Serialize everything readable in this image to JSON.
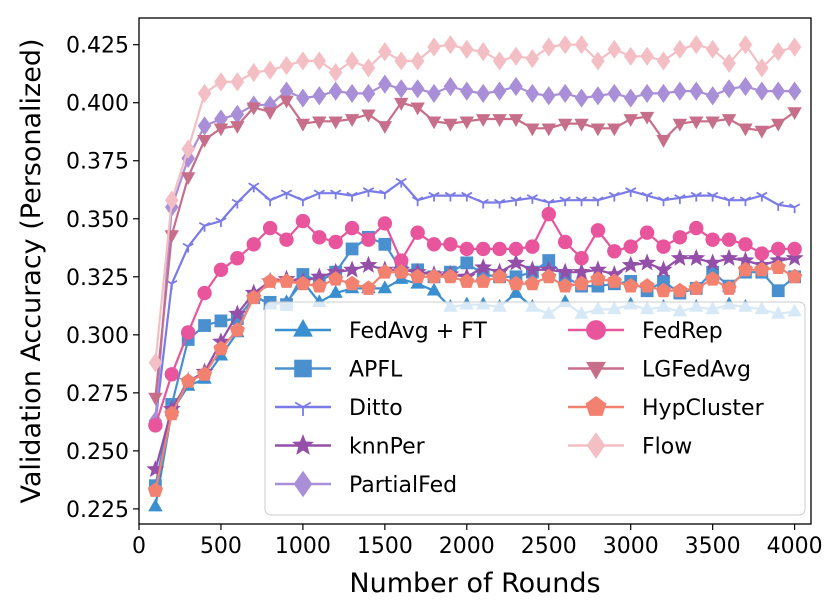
{
  "chart_data": {
    "type": "line",
    "title": "",
    "xlabel": "Number of Rounds",
    "ylabel": "Validation Accuracy (Personalized)",
    "xlim": [
      0,
      4100
    ],
    "ylim": [
      0.2185,
      0.4365
    ],
    "xticks": [
      0,
      500,
      1000,
      1500,
      2000,
      2500,
      3000,
      3500,
      4000
    ],
    "xtick_labels": [
      "0",
      "500",
      "1000",
      "1500",
      "2000",
      "2500",
      "3000",
      "3500",
      "4000"
    ],
    "yticks": [
      0.225,
      0.25,
      0.275,
      0.3,
      0.325,
      0.35,
      0.375,
      0.4,
      0.425
    ],
    "ytick_labels": [
      "0.225",
      "0.250",
      "0.275",
      "0.300",
      "0.325",
      "0.350",
      "0.375",
      "0.400",
      "0.425"
    ],
    "grid": false,
    "legend_position": "lower-right",
    "x": [
      100,
      200,
      300,
      400,
      500,
      600,
      700,
      800,
      900,
      1000,
      1100,
      1200,
      1300,
      1400,
      1500,
      1600,
      1700,
      1800,
      1900,
      2000,
      2100,
      2200,
      2300,
      2400,
      2500,
      2600,
      2700,
      2800,
      2900,
      3000,
      3100,
      3200,
      3300,
      3400,
      3500,
      3600,
      3700,
      3800,
      3900,
      4000
    ],
    "series": [
      {
        "name": "FedAvg + FT",
        "color": "#3a8fd1",
        "marker": "triangle-up",
        "values": [
          0.226,
          0.267,
          0.278,
          0.281,
          0.291,
          0.301,
          0.317,
          0.313,
          0.314,
          0.323,
          0.314,
          0.318,
          0.32,
          0.32,
          0.32,
          0.324,
          0.322,
          0.319,
          0.312,
          0.313,
          0.313,
          0.312,
          0.318,
          0.312,
          0.309,
          0.314,
          0.309,
          0.311,
          0.311,
          0.313,
          0.311,
          0.312,
          0.31,
          0.312,
          0.311,
          0.313,
          0.312,
          0.311,
          0.309,
          0.31
        ]
      },
      {
        "name": "APFL",
        "color": "#4a90cf",
        "marker": "square",
        "values": [
          0.235,
          0.27,
          0.298,
          0.304,
          0.306,
          0.307,
          0.316,
          0.314,
          0.313,
          0.326,
          0.323,
          0.327,
          0.337,
          0.342,
          0.339,
          0.328,
          0.328,
          0.325,
          0.327,
          0.331,
          0.326,
          0.325,
          0.325,
          0.327,
          0.332,
          0.325,
          0.321,
          0.321,
          0.322,
          0.323,
          0.319,
          0.323,
          0.318,
          0.32,
          0.327,
          0.321,
          0.327,
          0.327,
          0.319,
          0.325
        ]
      },
      {
        "name": "Ditto",
        "color": "#7b7be8",
        "marker": "tri-down",
        "values": [
          0.262,
          0.322,
          0.338,
          0.347,
          0.349,
          0.357,
          0.364,
          0.358,
          0.361,
          0.358,
          0.361,
          0.361,
          0.36,
          0.362,
          0.361,
          0.366,
          0.358,
          0.36,
          0.36,
          0.36,
          0.357,
          0.357,
          0.358,
          0.359,
          0.357,
          0.358,
          0.358,
          0.358,
          0.36,
          0.362,
          0.36,
          0.358,
          0.359,
          0.36,
          0.36,
          0.358,
          0.358,
          0.36,
          0.356,
          0.355
        ]
      },
      {
        "name": "knnPer",
        "color": "#9450a8",
        "marker": "star",
        "values": [
          0.242,
          0.268,
          0.28,
          0.284,
          0.297,
          0.309,
          0.318,
          0.323,
          0.324,
          0.323,
          0.325,
          0.327,
          0.328,
          0.33,
          0.328,
          0.328,
          0.327,
          0.326,
          0.326,
          0.325,
          0.329,
          0.327,
          0.331,
          0.328,
          0.328,
          0.327,
          0.327,
          0.328,
          0.326,
          0.33,
          0.331,
          0.328,
          0.333,
          0.333,
          0.331,
          0.333,
          0.332,
          0.33,
          0.332,
          0.333
        ]
      },
      {
        "name": "PartialFed",
        "color": "#a98fd8",
        "marker": "diamond",
        "values": [
          0.263,
          0.355,
          0.376,
          0.39,
          0.393,
          0.395,
          0.399,
          0.399,
          0.405,
          0.402,
          0.403,
          0.405,
          0.404,
          0.404,
          0.408,
          0.406,
          0.406,
          0.404,
          0.407,
          0.405,
          0.404,
          0.405,
          0.407,
          0.404,
          0.403,
          0.404,
          0.402,
          0.403,
          0.404,
          0.402,
          0.404,
          0.404,
          0.405,
          0.405,
          0.403,
          0.406,
          0.407,
          0.405,
          0.405,
          0.405
        ]
      },
      {
        "name": "FedRep",
        "color": "#e8559c",
        "marker": "circle",
        "values": [
          0.261,
          0.283,
          0.301,
          0.318,
          0.328,
          0.333,
          0.339,
          0.346,
          0.341,
          0.349,
          0.342,
          0.34,
          0.346,
          0.341,
          0.348,
          0.332,
          0.344,
          0.339,
          0.339,
          0.337,
          0.337,
          0.337,
          0.337,
          0.338,
          0.352,
          0.34,
          0.333,
          0.345,
          0.336,
          0.338,
          0.344,
          0.338,
          0.342,
          0.346,
          0.341,
          0.341,
          0.339,
          0.335,
          0.337,
          0.337
        ]
      },
      {
        "name": "LGFedAvg",
        "color": "#c76f8a",
        "marker": "triangle-down",
        "values": [
          0.273,
          0.343,
          0.368,
          0.384,
          0.389,
          0.39,
          0.398,
          0.396,
          0.401,
          0.391,
          0.392,
          0.392,
          0.393,
          0.395,
          0.39,
          0.4,
          0.398,
          0.392,
          0.391,
          0.392,
          0.393,
          0.393,
          0.393,
          0.389,
          0.389,
          0.391,
          0.391,
          0.389,
          0.389,
          0.393,
          0.394,
          0.384,
          0.391,
          0.392,
          0.392,
          0.393,
          0.389,
          0.388,
          0.391,
          0.396
        ]
      },
      {
        "name": "HypCluster",
        "color": "#f28170",
        "marker": "pentagon",
        "values": [
          0.233,
          0.266,
          0.28,
          0.283,
          0.294,
          0.302,
          0.316,
          0.323,
          0.323,
          0.322,
          0.321,
          0.324,
          0.322,
          0.32,
          0.327,
          0.327,
          0.325,
          0.325,
          0.325,
          0.323,
          0.323,
          0.325,
          0.322,
          0.322,
          0.325,
          0.321,
          0.322,
          0.324,
          0.323,
          0.321,
          0.321,
          0.319,
          0.319,
          0.32,
          0.324,
          0.32,
          0.328,
          0.328,
          0.329,
          0.325
        ]
      },
      {
        "name": "Flow",
        "color": "#f4bfc4",
        "marker": "diamond",
        "values": [
          0.288,
          0.358,
          0.38,
          0.404,
          0.409,
          0.409,
          0.413,
          0.414,
          0.416,
          0.418,
          0.418,
          0.413,
          0.418,
          0.415,
          0.422,
          0.418,
          0.418,
          0.424,
          0.425,
          0.423,
          0.422,
          0.418,
          0.42,
          0.419,
          0.424,
          0.425,
          0.425,
          0.418,
          0.423,
          0.42,
          0.42,
          0.418,
          0.423,
          0.425,
          0.423,
          0.417,
          0.425,
          0.415,
          0.422,
          0.424
        ]
      }
    ]
  }
}
